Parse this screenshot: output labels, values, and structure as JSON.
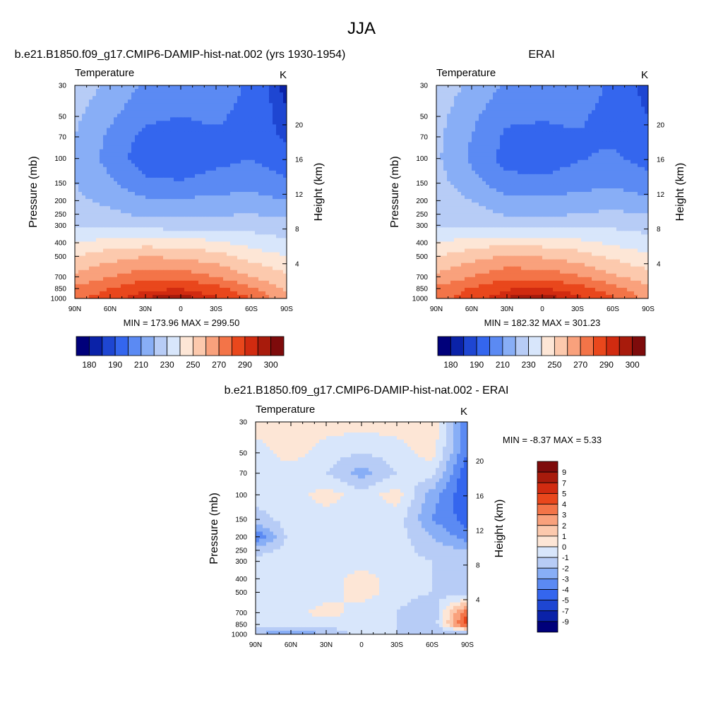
{
  "figure": {
    "title": "JJA"
  },
  "panels": {
    "model": {
      "title": "b.e21.B1850.f09_g17.CMIP6-DAMIP-hist-nat.002 (yrs 1930-1954)",
      "var_label": "Temperature",
      "unit": "K",
      "stats": "MIN = 173.96  MAX = 299.50",
      "ylabel": "Pressure (mb)",
      "ylabel_right": "Height (km)"
    },
    "obs": {
      "title": "ERAI",
      "var_label": "Temperature",
      "unit": "K",
      "stats": "MIN = 182.32  MAX = 301.23",
      "ylabel": "Pressure (mb)",
      "ylabel_right": "Height (km)"
    },
    "diff": {
      "title": "b.e21.B1850.f09_g17.CMIP6-DAMIP-hist-nat.002 - ERAI",
      "var_label": "Temperature",
      "unit": "K",
      "stats": "MIN =  -8.37  MAX =   5.33",
      "ylabel": "Pressure (mb)",
      "ylabel_right": "Height (km)"
    }
  },
  "axes": {
    "x_ticks": [
      "90N",
      "60N",
      "30N",
      "0",
      "30S",
      "60S",
      "90S"
    ],
    "pressure_ticks": [
      "30",
      "50",
      "70",
      "100",
      "150",
      "200",
      "250",
      "300",
      "400",
      "500",
      "700",
      "850",
      "1000"
    ],
    "height_ticks": [
      "20",
      "16",
      "12",
      "8",
      "4"
    ]
  },
  "chart_data": [
    {
      "type": "heatmap",
      "title": "b.e21.B1850.f09_g17.CMIP6-DAMIP-hist-nat.002 (yrs 1930-1954)",
      "variable": "Temperature",
      "unit": "K",
      "x": [
        "90N",
        "60N",
        "30N",
        "0",
        "30S",
        "60S",
        "90S"
      ],
      "y": [
        30,
        50,
        70,
        100,
        150,
        200,
        250,
        300,
        400,
        500,
        700,
        850,
        1000
      ],
      "ylabel": "Pressure (mb)",
      "ylabel_right": "Height (km)",
      "min": 173.96,
      "max": 299.5,
      "values": [
        [
          226,
          218,
          208,
          206,
          206,
          198,
          182
        ],
        [
          222,
          212,
          202,
          200,
          202,
          196,
          186
        ],
        [
          220,
          208,
          197,
          196,
          198,
          196,
          188
        ],
        [
          218,
          206,
          194,
          193,
          197,
          200,
          194
        ],
        [
          220,
          212,
          202,
          201,
          204,
          206,
          202
        ],
        [
          222,
          218,
          212,
          211,
          213,
          214,
          210
        ],
        [
          224,
          222,
          218,
          217,
          219,
          220,
          218
        ],
        [
          228,
          228,
          226,
          225,
          226,
          226,
          224
        ],
        [
          240,
          244,
          246,
          245,
          242,
          236,
          232
        ],
        [
          250,
          256,
          260,
          258,
          254,
          246,
          240
        ],
        [
          262,
          270,
          276,
          276,
          270,
          260,
          252
        ],
        [
          272,
          280,
          288,
          290,
          284,
          272,
          258
        ],
        [
          278,
          286,
          296,
          298,
          292,
          280,
          262
        ]
      ],
      "colorbar": {
        "labels": [
          "180",
          "190",
          "210",
          "230",
          "250",
          "270",
          "290",
          "300"
        ]
      }
    },
    {
      "type": "heatmap",
      "title": "ERAI",
      "variable": "Temperature",
      "unit": "K",
      "x": [
        "90N",
        "60N",
        "30N",
        "0",
        "30S",
        "60S",
        "90S"
      ],
      "y": [
        30,
        50,
        70,
        100,
        150,
        200,
        250,
        300,
        400,
        500,
        700,
        850,
        1000
      ],
      "ylabel": "Pressure (mb)",
      "ylabel_right": "Height (km)",
      "min": 182.32,
      "max": 301.23,
      "values": [
        [
          226,
          218,
          208,
          206,
          206,
          198,
          186
        ],
        [
          224,
          212,
          202,
          201,
          202,
          196,
          190
        ],
        [
          222,
          210,
          198,
          197,
          199,
          198,
          192
        ],
        [
          222,
          208,
          196,
          195,
          199,
          202,
          196
        ],
        [
          224,
          214,
          204,
          202,
          206,
          208,
          204
        ],
        [
          226,
          220,
          213,
          212,
          214,
          216,
          212
        ],
        [
          226,
          224,
          219,
          218,
          220,
          222,
          220
        ],
        [
          228,
          229,
          226,
          226,
          227,
          228,
          226
        ],
        [
          240,
          245,
          247,
          246,
          243,
          238,
          234
        ],
        [
          250,
          256,
          261,
          259,
          255,
          248,
          242
        ],
        [
          262,
          270,
          277,
          277,
          271,
          262,
          254
        ],
        [
          272,
          281,
          289,
          291,
          285,
          274,
          262
        ],
        [
          276,
          286,
          296,
          299,
          293,
          282,
          266
        ]
      ],
      "colorbar": {
        "labels": [
          "180",
          "190",
          "210",
          "230",
          "250",
          "270",
          "290",
          "300"
        ]
      }
    },
    {
      "type": "heatmap",
      "title": "b.e21.B1850.f09_g17.CMIP6-DAMIP-hist-nat.002 - ERAI",
      "variable": "Temperature",
      "unit": "K",
      "x": [
        "90N",
        "60N",
        "30N",
        "0",
        "30S",
        "60S",
        "90S"
      ],
      "y": [
        30,
        50,
        70,
        100,
        150,
        200,
        250,
        300,
        400,
        500,
        700,
        850,
        1000
      ],
      "ylabel": "Pressure (mb)",
      "ylabel_right": "Height (km)",
      "min": -8.37,
      "max": 5.33,
      "values": [
        [
          0.5,
          0.5,
          0.5,
          0.5,
          0.5,
          1.0,
          -4.0
        ],
        [
          -0.5,
          0.5,
          -0.5,
          -1.0,
          -0.5,
          0.5,
          -4.0
        ],
        [
          -0.5,
          -0.5,
          -1.0,
          -2.5,
          -1.0,
          -0.5,
          -5.0
        ],
        [
          -0.5,
          -0.5,
          0.5,
          -0.5,
          0.5,
          -2.5,
          -5.0
        ],
        [
          -1.5,
          -0.5,
          -0.5,
          -0.5,
          -0.5,
          -3.0,
          -4.5
        ],
        [
          -4.0,
          -0.5,
          -0.5,
          -0.5,
          -0.5,
          -2.0,
          -3.5
        ],
        [
          -1.5,
          -0.5,
          -0.5,
          -0.5,
          -0.5,
          -1.5,
          -2.0
        ],
        [
          -0.5,
          -0.5,
          -0.5,
          -0.5,
          -0.5,
          -1.0,
          -1.5
        ],
        [
          -0.5,
          -0.5,
          -0.5,
          0.5,
          -0.5,
          -1.0,
          -2.0
        ],
        [
          -0.5,
          -0.5,
          -0.5,
          0.5,
          -0.5,
          -1.0,
          -2.0
        ],
        [
          -0.5,
          -0.5,
          0.5,
          -0.5,
          -1.0,
          -2.0,
          4.0
        ],
        [
          -0.5,
          -0.5,
          -0.5,
          -0.5,
          -1.0,
          -2.0,
          5.0
        ],
        [
          -2.0,
          -3.0,
          -2.0,
          -0.5,
          -1.0,
          -2.0,
          -3.0
        ]
      ],
      "colorbar": {
        "labels": [
          "9",
          "7",
          "5",
          "4",
          "3",
          "2",
          "1",
          "0",
          "-1",
          "-2",
          "-3",
          "-4",
          "-5",
          "-7",
          "-9"
        ]
      }
    }
  ],
  "palettes": {
    "temperature_levels": [
      180,
      185,
      190,
      200,
      210,
      220,
      230,
      240,
      250,
      260,
      270,
      280,
      290,
      295,
      300
    ],
    "temperature_colors": [
      "#00007a",
      "#0a22a8",
      "#1e46d2",
      "#3466ee",
      "#5b8af3",
      "#88aef6",
      "#b7ccf6",
      "#d8e6fb",
      "#fde6d6",
      "#fcc9ad",
      "#f9a17c",
      "#f37448",
      "#e9471c",
      "#d12b10",
      "#a81b0c",
      "#7e0b0b"
    ],
    "diff_levels": [
      -9,
      -7,
      -5,
      -4,
      -3,
      -2,
      -1,
      0,
      1,
      2,
      3,
      4,
      5,
      7,
      9
    ],
    "diff_colors": [
      "#00007a",
      "#0a22a8",
      "#1e46d2",
      "#3466ee",
      "#5b8af3",
      "#88aef6",
      "#b7ccf6",
      "#d8e6fb",
      "#fde6d6",
      "#fcc9ad",
      "#f9a17c",
      "#f37448",
      "#e9471c",
      "#d12b10",
      "#a81b0c",
      "#7e0b0b"
    ]
  }
}
